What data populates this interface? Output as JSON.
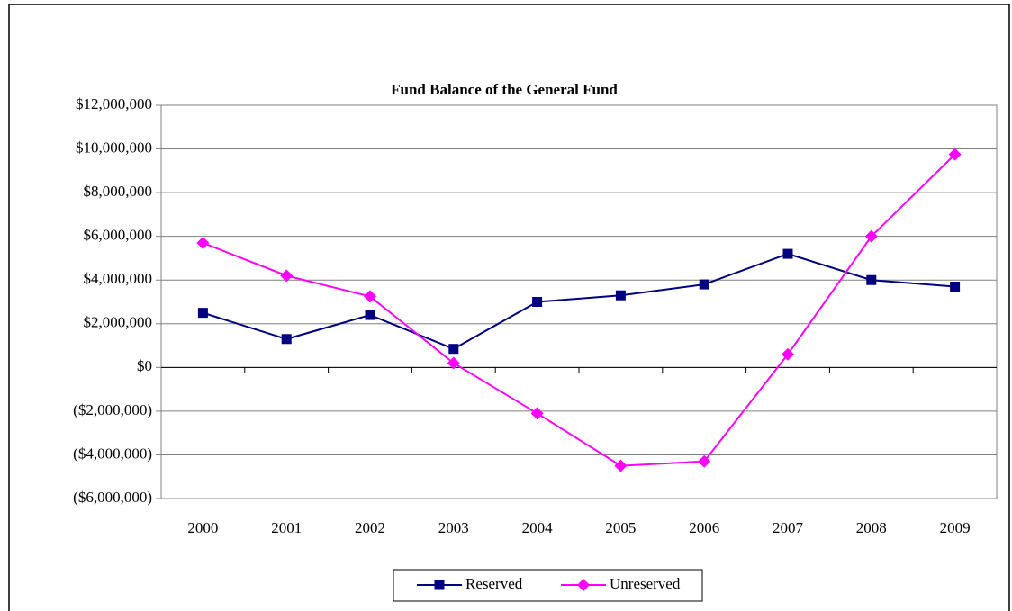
{
  "chart_data": {
    "type": "line",
    "title": "Fund Balance of the General Fund",
    "categories": [
      "2000",
      "2001",
      "2002",
      "2003",
      "2004",
      "2005",
      "2006",
      "2007",
      "2008",
      "2009"
    ],
    "series": [
      {
        "name": "Reserved",
        "color": "#000080",
        "marker": "square",
        "values": [
          2500000,
          1300000,
          2400000,
          850000,
          3000000,
          3300000,
          3800000,
          5200000,
          4000000,
          3700000
        ]
      },
      {
        "name": "Unreserved",
        "color": "#ff00ff",
        "marker": "diamond",
        "values": [
          5700000,
          4200000,
          3250000,
          200000,
          -2100000,
          -4500000,
          -4300000,
          600000,
          6000000,
          9750000
        ]
      }
    ],
    "ylim": [
      -6000000,
      12000000
    ],
    "yticks": [
      {
        "value": -6000000,
        "label": "($6,000,000)"
      },
      {
        "value": -4000000,
        "label": "($4,000,000)"
      },
      {
        "value": -2000000,
        "label": "($2,000,000)"
      },
      {
        "value": 0,
        "label": "$0"
      },
      {
        "value": 2000000,
        "label": "$2,000,000"
      },
      {
        "value": 4000000,
        "label": "$4,000,000"
      },
      {
        "value": 6000000,
        "label": "$6,000,000"
      },
      {
        "value": 8000000,
        "label": "$8,000,000"
      },
      {
        "value": 10000000,
        "label": "$10,000,000"
      },
      {
        "value": 12000000,
        "label": "$12,000,000"
      }
    ],
    "grid": true,
    "legend": "bottom"
  }
}
